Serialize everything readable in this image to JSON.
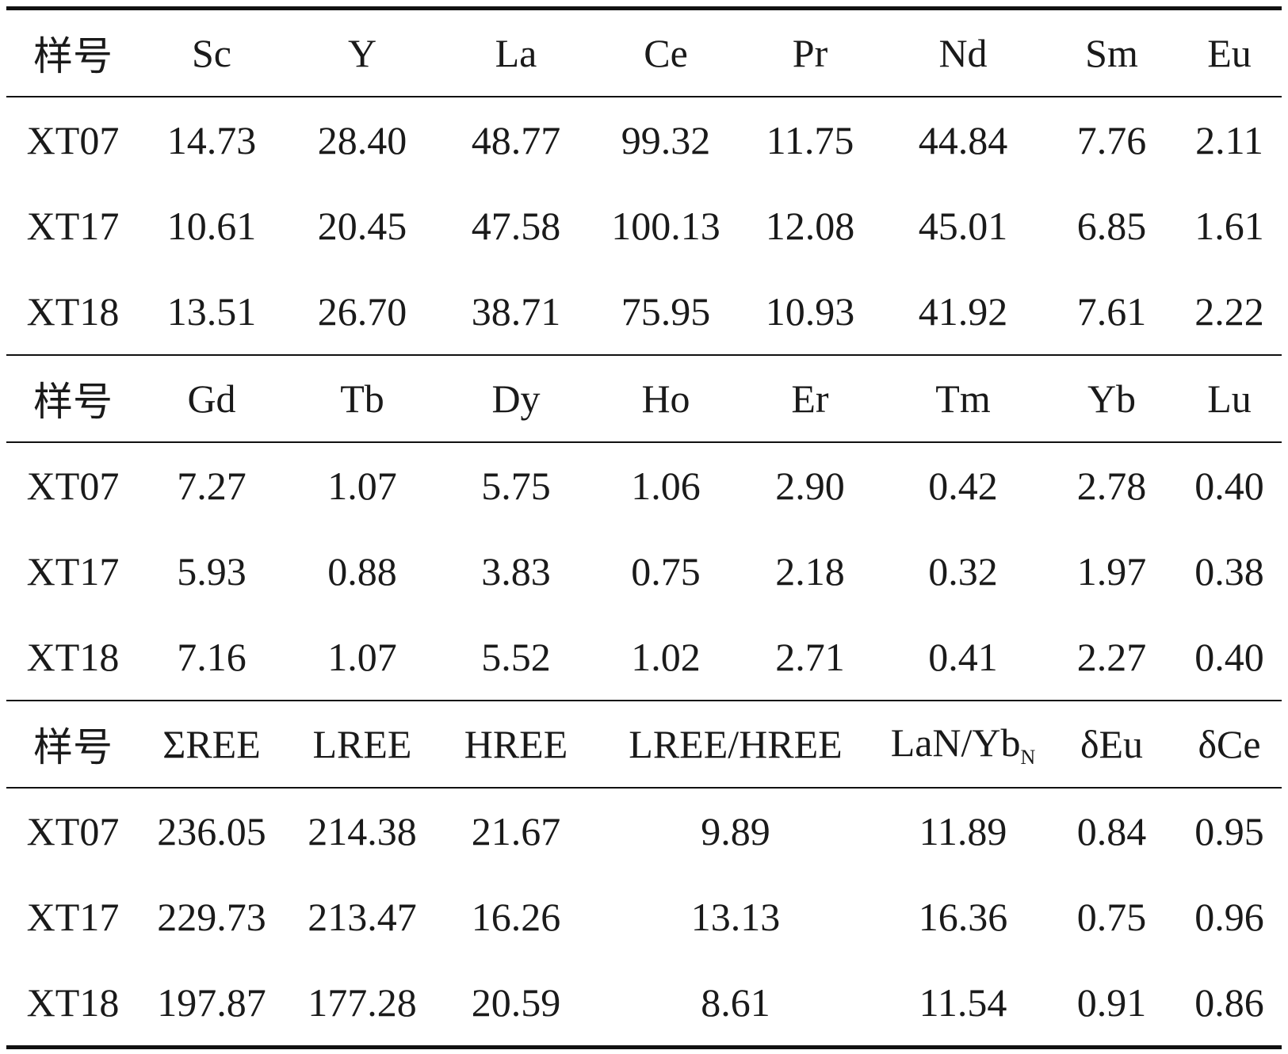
{
  "blocks": [
    {
      "header": [
        "样号",
        "Sc",
        "Y",
        "La",
        "Ce",
        "Pr",
        "Nd",
        "Sm",
        "Eu"
      ],
      "rows": [
        [
          "XT07",
          "14.73",
          "28.40",
          "48.77",
          "99.32",
          "11.75",
          "44.84",
          "7.76",
          "2.11"
        ],
        [
          "XT17",
          "10.61",
          "20.45",
          "47.58",
          "100.13",
          "12.08",
          "45.01",
          "6.85",
          "1.61"
        ],
        [
          "XT18",
          "13.51",
          "26.70",
          "38.71",
          "75.95",
          "10.93",
          "41.92",
          "7.61",
          "2.22"
        ]
      ]
    },
    {
      "header": [
        "样号",
        "Gd",
        "Tb",
        "Dy",
        "Ho",
        "Er",
        "Tm",
        "Yb",
        "Lu"
      ],
      "rows": [
        [
          "XT07",
          "7.27",
          "1.07",
          "5.75",
          "1.06",
          "2.90",
          "0.42",
          "2.78",
          "0.40"
        ],
        [
          "XT17",
          "5.93",
          "0.88",
          "3.83",
          "0.75",
          "2.18",
          "0.32",
          "1.97",
          "0.38"
        ],
        [
          "XT18",
          "7.16",
          "1.07",
          "5.52",
          "1.02",
          "2.71",
          "0.41",
          "2.27",
          "0.40"
        ]
      ]
    },
    {
      "header": [
        "样号",
        "ΣREE",
        "LREE",
        "HREE",
        "LREE/HREE",
        {
          "text": "LaN/Yb",
          "sub": "N"
        },
        "δEu",
        "δCe"
      ],
      "rows": [
        [
          "XT07",
          "236.05",
          "214.38",
          "21.67",
          "9.89",
          "11.89",
          "0.84",
          "0.95"
        ],
        [
          "XT17",
          "229.73",
          "213.47",
          "16.26",
          "13.13",
          "16.36",
          "0.75",
          "0.96"
        ],
        [
          "XT18",
          "197.87",
          "177.28",
          "20.59",
          "8.61",
          "11.54",
          "0.91",
          "0.86"
        ]
      ]
    }
  ]
}
